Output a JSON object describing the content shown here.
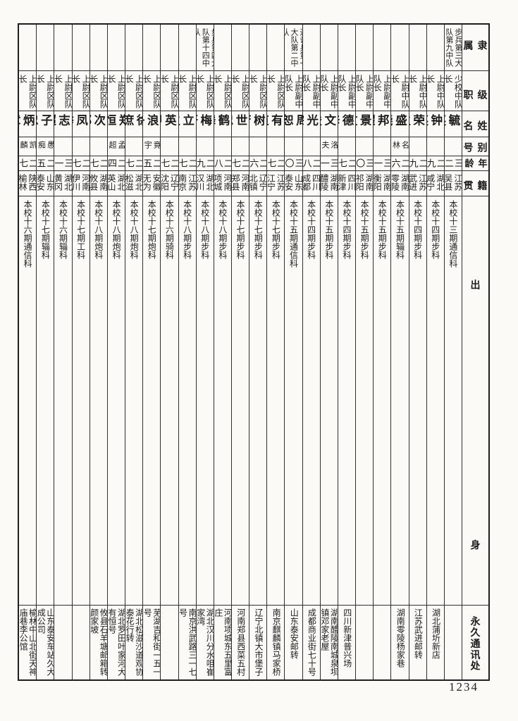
{
  "page": {
    "number": "1234"
  },
  "table": {
    "row_headers": [
      {
        "key": "affiliation",
        "label": "隶属"
      },
      {
        "key": "rank",
        "label": "级职"
      },
      {
        "key": "name",
        "label": "姓名"
      },
      {
        "key": "alias",
        "label": "别号"
      },
      {
        "key": "age",
        "label": "年龄"
      },
      {
        "key": "origin",
        "label": "籍贯"
      },
      {
        "key": "background",
        "label": "出身"
      },
      {
        "key": "address",
        "label": "永久通讯处"
      }
    ],
    "people": [
      {
        "affiliation": "步兵第三大队第九中队",
        "rank": "少校中队长",
        "name": "陈毓英",
        "alias": "",
        "age": "三二",
        "origin": "江苏吴县",
        "background": "本校十三期通信科",
        "address": ""
      },
      {
        "affiliation": "",
        "rank": "上尉中队长",
        "name": "戴钟英",
        "alias": "",
        "age": "二九",
        "origin": "湖北咸宁",
        "background": "本校十四期步科",
        "address": "湖北蒲圻新店"
      },
      {
        "affiliation": "",
        "rank": "上尉中队长",
        "name": "周荣生",
        "alias": "",
        "age": "二九",
        "origin": "江苏武进",
        "background": "本校十四期步科",
        "address": "江苏武进邮转"
      },
      {
        "affiliation": "",
        "rank": "上尉中队长",
        "name": "杨盛尧",
        "alias": "名林",
        "age": "二六",
        "origin": "湖南零陵",
        "background": "本校十五期辎科",
        "address": "湖南零陵杨家巷"
      },
      {
        "affiliation": "",
        "rank": "上尉副中队长",
        "name": "段邦曜",
        "alias": "",
        "age": "三一",
        "origin": "湖南衡阳",
        "background": "本校十五期步科",
        "address": ""
      },
      {
        "affiliation": "",
        "rank": "上尉副中队长",
        "name": "蒋景文",
        "alias": "",
        "age": "三〇",
        "origin": "湖南祁阳",
        "background": "本校十五期步科",
        "address": ""
      },
      {
        "affiliation": "",
        "rank": "上尉副中队长",
        "name": "刘德修",
        "alias": "",
        "age": "二七",
        "origin": "四川新津",
        "background": "本校十四期步科",
        "address": "四川新津普兴场"
      },
      {
        "affiliation": "",
        "rank": "上尉副中队长",
        "name": "邓文俊",
        "alias": "洛夫",
        "age": "三一",
        "origin": "湖南醴陵",
        "background": "本校十五期步科",
        "address": "湖南醴陵南城泉坝镇邓家老屋"
      },
      {
        "affiliation": "",
        "rank": "上尉副中队长",
        "name": "杜光宗",
        "alias": "",
        "age": "二八",
        "origin": "四川成都",
        "background": "本校十四期步科",
        "address": "成都商业街七十号"
      },
      {
        "affiliation": "通讯兵第一大队第二中队",
        "rank": "上尉副中队长",
        "name": "周恕",
        "alias": "",
        "age": "三〇",
        "origin": "山东泰安",
        "background": "本校十五期通信科",
        "address": "山东泰安邮转"
      },
      {
        "affiliation": "",
        "rank": "上尉区队长",
        "name": "任有道",
        "alias": "",
        "age": "二七",
        "origin": "江苏江宁",
        "background": "本校十七期步科",
        "address": "南京麒麟镇马家桥"
      },
      {
        "affiliation": "",
        "rank": "上尉区队长",
        "name": "董树芳",
        "alias": "",
        "age": "二六",
        "origin": "辽宁北镇",
        "background": "本校十七期步科",
        "address": "辽宁北镇大市堡子"
      },
      {
        "affiliation": "",
        "rank": "上尉区队长",
        "name": "王世忠",
        "alias": "",
        "age": "二七",
        "origin": "河南郑县",
        "background": "本校十七期步科",
        "address": "河南郑县西菜五村"
      },
      {
        "affiliation": "",
        "rank": "上尉区队长",
        "name": "李鹤舞",
        "alias": "",
        "age": "二八",
        "origin": "河南项城",
        "background": "本校十八期步科",
        "address": "河南项城东五里富庄"
      },
      {
        "affiliation": "步兵第四大队第十四中队",
        "rank": "上尉区队长",
        "name": "周梅轩",
        "alias": "",
        "age": "二九",
        "origin": "湖北汉川",
        "background": "本校十八期步科",
        "address": "湖北汉川分水咀崔家湾"
      },
      {
        "affiliation": "",
        "rank": "上尉区队长",
        "name": "陈立生",
        "alias": "",
        "age": "二七",
        "origin": "江苏南京",
        "background": "本校十八期步科",
        "address": "南京洪武路三一七号"
      },
      {
        "affiliation": "",
        "rank": "上尉区队长",
        "name": "高英甲",
        "alias": "",
        "age": "二七",
        "origin": "辽宁沈阳",
        "background": "本校十六期骑科",
        "address": ""
      },
      {
        "affiliation": "",
        "rank": "上尉区队长",
        "name": "张浪舟",
        "alias": "竟宇",
        "age": "二五",
        "origin": "安徽无为",
        "background": "本校十七期炮科",
        "address": "芜湖吉和街一五一号"
      },
      {
        "affiliation": "",
        "rank": "上尉区队长",
        "name": "徐庶",
        "alias": "",
        "age": "二七",
        "origin": "湖北松滋",
        "background": "本校十八期炮科",
        "address": "湖北松滋沙道观协泰花行转"
      },
      {
        "affiliation": "",
        "rank": "上尉区队长",
        "name": "郑恒",
        "alias": "孟超",
        "age": "二四",
        "origin": "湖北英山",
        "background": "本校十八期炮科",
        "address": "湖北罗田叶家河大有恒号"
      },
      {
        "affiliation": "",
        "rank": "上尉区队长",
        "name": "蔡次郁",
        "alias": "",
        "age": "二七",
        "origin": "湖南攸县",
        "background": "本校十八期炮科",
        "address": "攸县石羊塘邮箱转颜家坡"
      },
      {
        "affiliation": "",
        "rank": "上尉区队长",
        "name": "周凤举",
        "alias": "",
        "age": "二七",
        "origin": "河南伊川",
        "background": "本校十七期工科",
        "address": ""
      },
      {
        "affiliation": "",
        "rank": "上尉区队长",
        "name": "邱志超",
        "alias": "",
        "age": "三一",
        "origin": "湖北黄冈",
        "background": "本校十六期辎科",
        "address": ""
      },
      {
        "affiliation": "",
        "rank": "上尉区队长",
        "name": "张子忠",
        "alias": "愚痴",
        "age": "二五",
        "origin": "山东泰安",
        "background": "本校十七期辎科",
        "address": "山东泰安车站久大成公司"
      },
      {
        "affiliation": "",
        "rank": "上尉区队长",
        "name": "陈炳章",
        "alias": "凯麟",
        "age": "二七",
        "origin": "陕西榆林",
        "background": "本校十六期通信科",
        "address": "榆林中山北街天神庙巷李公馆"
      }
    ]
  }
}
